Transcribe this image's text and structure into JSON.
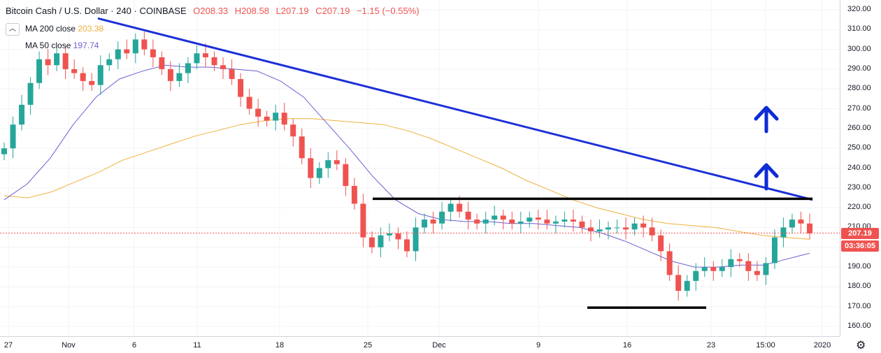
{
  "header": {
    "title": "Bitcoin Cash / U.S. Dollar · 240 · COINBASE",
    "open": "O208.33",
    "high": "H208.58",
    "low": "L207.19",
    "close": "C207.19",
    "change": "−1.15 (−0.55%)",
    "ma200_label": "MA 200 close",
    "ma200_value": "203.38",
    "ma50_label": "MA 50 close",
    "ma50_value": "197.74",
    "toggle_icon": "chevron-up-icon"
  },
  "price_axis": {
    "ticks": [
      "320.00",
      "310.00",
      "300.00",
      "290.00",
      "280.00",
      "270.00",
      "260.00",
      "250.00",
      "240.00",
      "230.00",
      "220.00",
      "210.00",
      "200.00",
      "190.00",
      "180.00",
      "170.00",
      "160.00"
    ],
    "last_price": "207.19",
    "countdown": "03:36:05"
  },
  "time_axis": {
    "ticks": [
      "27",
      "Nov",
      "6",
      "11",
      "18",
      "25",
      "Dec",
      "9",
      "16",
      "23",
      "15:00",
      "2020"
    ]
  },
  "colors": {
    "up": "#26a69a",
    "down": "#ef5350",
    "ma200": "#f0b13a",
    "ma50": "#6d5fd1",
    "trendline": "#1b2fd8",
    "level": "#000000",
    "arrow": "#0d2bd6"
  },
  "chart_data": {
    "type": "line",
    "ylim": [
      156,
      323
    ],
    "close_series": [
      250,
      262,
      272,
      283,
      295,
      292,
      298,
      290,
      288,
      284,
      282,
      292,
      295,
      300,
      298,
      305,
      300,
      296,
      290,
      284,
      288,
      293,
      298,
      296,
      292,
      290,
      285,
      276,
      270,
      266,
      264,
      268,
      262,
      256,
      245,
      235,
      240,
      244,
      242,
      231,
      222,
      205,
      200,
      206,
      207,
      204,
      198,
      210,
      214,
      212,
      218,
      222,
      218,
      214,
      212,
      214,
      216,
      214,
      212,
      213,
      215,
      214,
      212,
      213,
      214,
      213,
      210,
      208,
      209,
      210,
      210,
      209,
      212,
      210,
      206,
      198,
      186,
      178,
      183,
      188,
      190,
      188,
      190,
      194,
      193,
      188,
      186,
      192,
      205,
      210,
      214,
      212,
      207
    ],
    "ma200": [
      226,
      225,
      228,
      233,
      238,
      244,
      248,
      252,
      256,
      259,
      262,
      264,
      265,
      265,
      264,
      263,
      262,
      259,
      255,
      250,
      245,
      240,
      234,
      229,
      224,
      220,
      217,
      214,
      212,
      211,
      210,
      208,
      206,
      205,
      204
    ],
    "ma50": [
      224,
      232,
      245,
      262,
      276,
      285,
      289,
      292,
      291,
      291,
      290,
      289,
      284,
      276,
      263,
      250,
      236,
      224,
      217,
      214,
      213,
      213,
      212,
      212,
      211,
      210,
      207,
      203,
      198,
      193,
      190,
      190,
      191,
      191,
      194,
      197
    ],
    "annotations": [
      {
        "type": "trendline",
        "from": [
          0,
          322
        ],
        "to": [
          1,
          224
        ]
      },
      {
        "type": "resistance",
        "value": 224.5
      },
      {
        "type": "support",
        "value": 169.5
      },
      {
        "type": "arrow-up",
        "label": "upper"
      },
      {
        "type": "arrow-up",
        "label": "lower"
      }
    ]
  }
}
